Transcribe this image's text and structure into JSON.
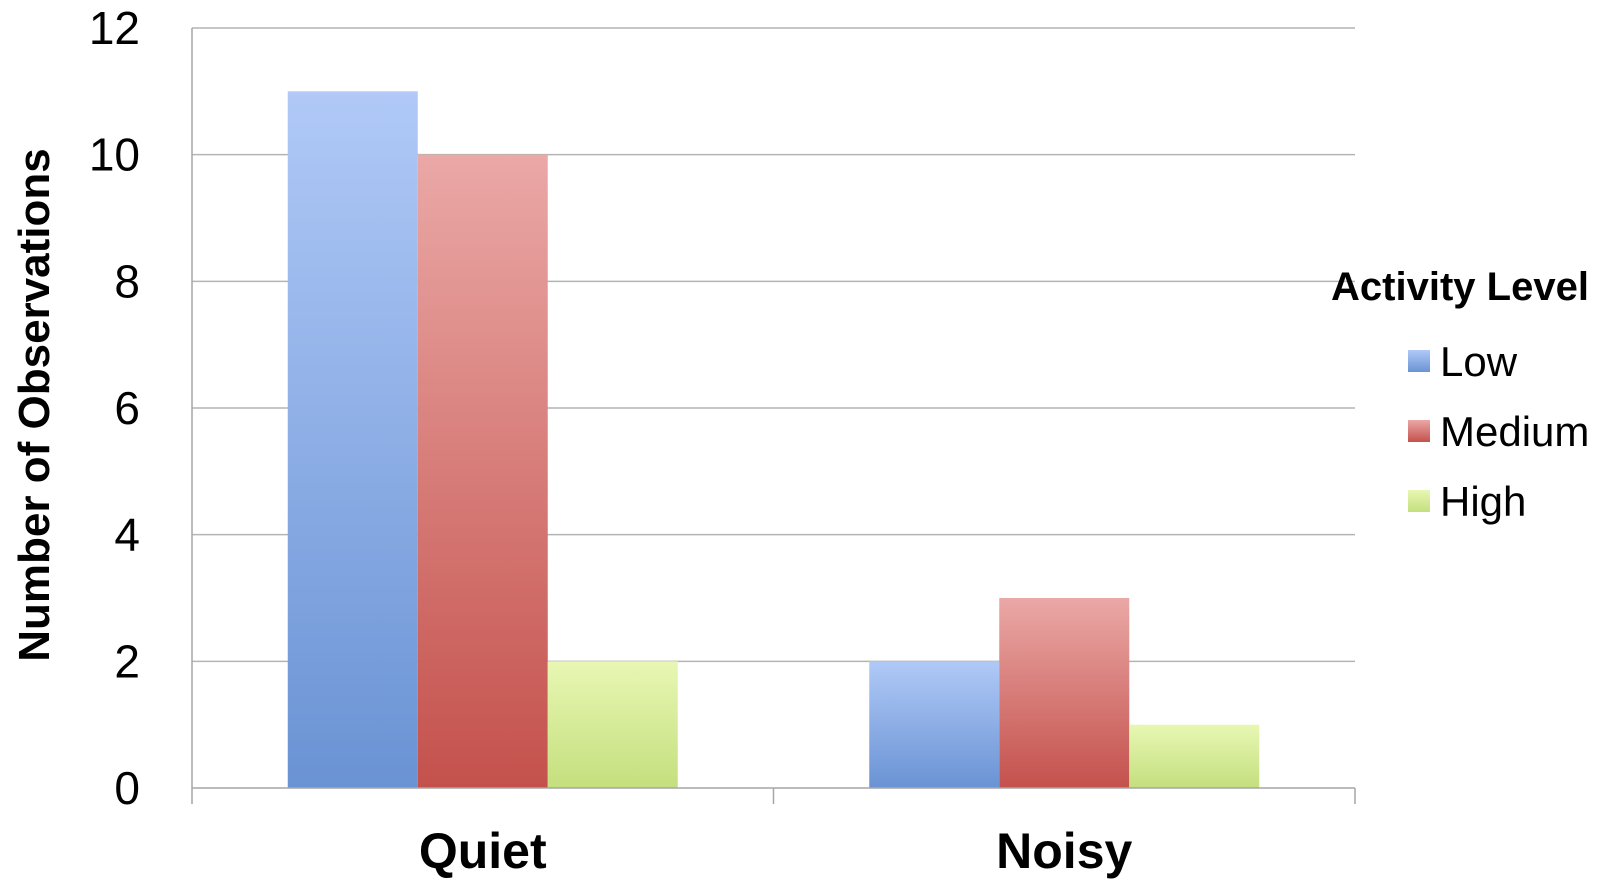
{
  "chart_data": {
    "type": "bar",
    "title": "",
    "xlabel": "",
    "ylabel": "Number of Observations",
    "ylim": [
      0,
      12
    ],
    "yticks": [
      0,
      2,
      4,
      6,
      8,
      10,
      12
    ],
    "grid": true,
    "categories": [
      "Quiet",
      "Noisy"
    ],
    "legend": {
      "title": "Activity Level",
      "placement": "right"
    },
    "series": [
      {
        "name": "Low",
        "values": [
          11,
          2
        ],
        "color": "#7a9fdc",
        "color_light": "#b0c9f7",
        "color_dark": "#6a93d4"
      },
      {
        "name": "Medium",
        "values": [
          10,
          3
        ],
        "color": "#d46e69",
        "color_light": "#eaa8a6",
        "color_dark": "#c4514c"
      },
      {
        "name": "High",
        "values": [
          2,
          1
        ],
        "color": "#d3e893",
        "color_light": "#e8f7b3",
        "color_dark": "#c4df7e"
      }
    ]
  }
}
